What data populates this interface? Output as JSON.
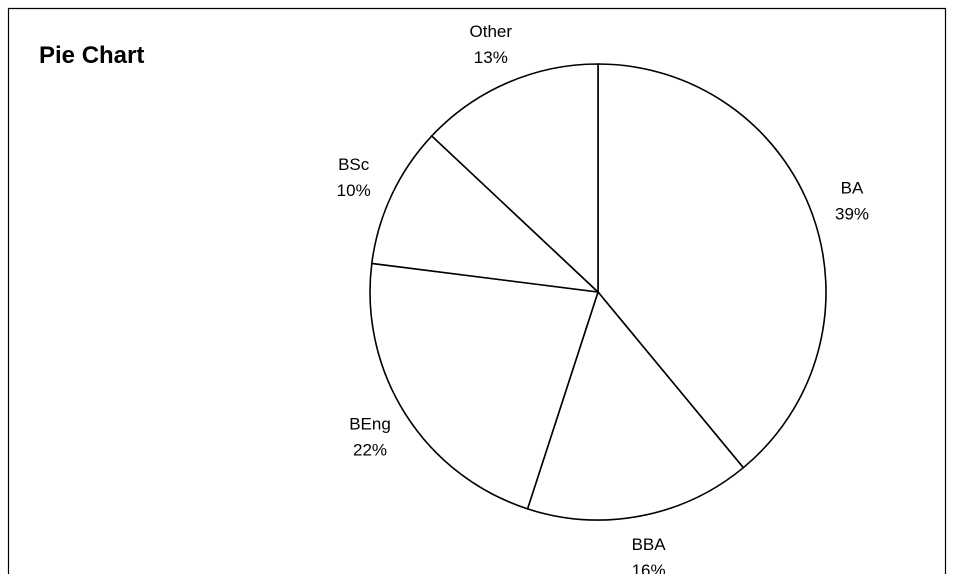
{
  "chart_data": {
    "type": "pie",
    "title": "Pie Chart",
    "start_angle_deg": 0,
    "direction": "clockwise",
    "colors": {
      "fill": "#ffffff",
      "stroke": "#000000",
      "background": "#ffffff"
    },
    "slices": [
      {
        "label": "BA",
        "value": 39,
        "percent_label": "39%"
      },
      {
        "label": "BBA",
        "value": 16,
        "percent_label": "16%"
      },
      {
        "label": "BEng",
        "value": 22,
        "percent_label": "22%"
      },
      {
        "label": "BSc",
        "value": 10,
        "percent_label": "10%"
      },
      {
        "label": "Other",
        "value": 13,
        "percent_label": "13%"
      }
    ]
  }
}
